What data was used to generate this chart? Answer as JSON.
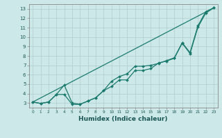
{
  "title": "",
  "xlabel": "Humidex (Indice chaleur)",
  "xlim": [
    -0.5,
    23.5
  ],
  "ylim": [
    2.5,
    13.5
  ],
  "xticks": [
    0,
    1,
    2,
    3,
    4,
    5,
    6,
    7,
    8,
    9,
    10,
    11,
    12,
    13,
    14,
    15,
    16,
    17,
    18,
    19,
    20,
    21,
    22,
    23
  ],
  "yticks": [
    3,
    4,
    5,
    6,
    7,
    8,
    9,
    10,
    11,
    12,
    13
  ],
  "background_color": "#cce8e8",
  "grid_color": "#b0cccc",
  "line_color": "#1a7a6e",
  "line1_x": [
    0,
    23
  ],
  "line1_y": [
    3.1,
    13.1
  ],
  "line2_x": [
    0,
    1,
    2,
    3,
    4,
    5,
    6,
    7,
    8,
    9,
    10,
    11,
    12,
    13,
    14,
    15,
    16,
    17,
    18,
    19,
    20,
    21,
    22,
    23
  ],
  "line2_y": [
    3.1,
    2.95,
    3.1,
    3.9,
    4.9,
    3.0,
    2.85,
    3.2,
    3.55,
    4.3,
    5.3,
    5.8,
    6.1,
    6.9,
    6.9,
    7.0,
    7.2,
    7.5,
    7.8,
    9.4,
    8.35,
    11.2,
    12.7,
    13.1
  ],
  "line3_x": [
    0,
    1,
    2,
    3,
    4,
    5,
    6,
    7,
    8,
    9,
    10,
    11,
    12,
    13,
    14,
    15,
    16,
    17,
    18,
    19,
    20,
    21,
    22,
    23
  ],
  "line3_y": [
    3.1,
    2.95,
    3.1,
    3.9,
    3.9,
    2.85,
    2.85,
    3.2,
    3.55,
    4.3,
    4.75,
    5.45,
    5.45,
    6.45,
    6.45,
    6.65,
    7.25,
    7.45,
    7.75,
    9.35,
    8.25,
    11.05,
    12.55,
    13.1
  ]
}
